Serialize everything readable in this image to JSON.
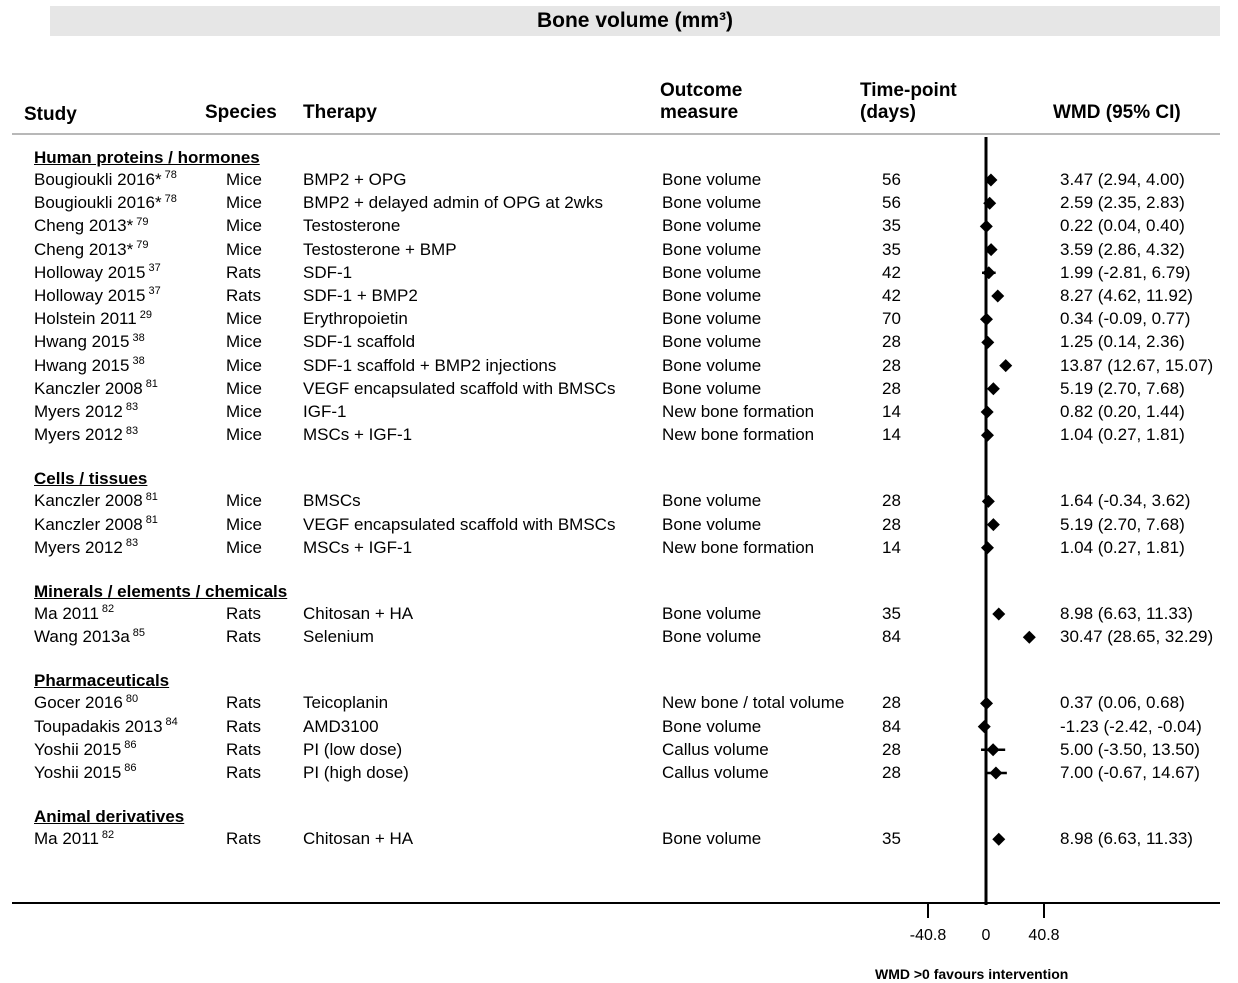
{
  "title": "Bone volume (mm³)",
  "headers": {
    "study": "Study",
    "species": "Species",
    "therapy": "Therapy",
    "outcome_line1": "Outcome",
    "outcome_line2": "measure",
    "time_line1": "Time-point",
    "time_line2": "(days)",
    "wmd": "WMD (95% CI)"
  },
  "axis_note": "WMD >0 favours intervention",
  "chart_data": {
    "type": "scatter",
    "title": "Bone volume (mm³)",
    "xlabel": "WMD >0 favours intervention",
    "x_ticks": [
      "-40.8",
      "0",
      "40.8"
    ],
    "x_tick_values": [
      -40.8,
      0,
      40.8
    ],
    "xlim": [
      -55,
      170
    ],
    "groups": [
      {
        "name": "Human proteins / hormones",
        "rows": [
          {
            "study": "Bougioukli 2016*",
            "ref": "78",
            "species": "Mice",
            "therapy": "BMP2 + OPG",
            "outcome": "Bone volume",
            "time": "56",
            "wmd": 3.47,
            "lo": 2.94,
            "hi": 4.0,
            "label": "3.47 (2.94, 4.00)"
          },
          {
            "study": "Bougioukli 2016*",
            "ref": "78",
            "species": "Mice",
            "therapy": "BMP2 + delayed admin of OPG at 2wks",
            "outcome": "Bone volume",
            "time": "56",
            "wmd": 2.59,
            "lo": 2.35,
            "hi": 2.83,
            "label": "2.59 (2.35, 2.83)"
          },
          {
            "study": "Cheng 2013*",
            "ref": "79",
            "species": "Mice",
            "therapy": "Testosterone",
            "outcome": "Bone volume",
            "time": "35",
            "wmd": 0.22,
            "lo": 0.04,
            "hi": 0.4,
            "label": "0.22 (0.04, 0.40)"
          },
          {
            "study": "Cheng 2013*",
            "ref": "79",
            "species": "Mice",
            "therapy": "Testosterone + BMP",
            "outcome": "Bone volume",
            "time": "35",
            "wmd": 3.59,
            "lo": 2.86,
            "hi": 4.32,
            "label": "3.59 (2.86, 4.32)"
          },
          {
            "study": "Holloway 2015",
            "ref": "37",
            "species": "Rats",
            "therapy": "SDF-1",
            "outcome": "Bone volume",
            "time": "42",
            "wmd": 1.99,
            "lo": -2.81,
            "hi": 6.79,
            "label": "1.99 (-2.81, 6.79)"
          },
          {
            "study": "Holloway 2015",
            "ref": "37",
            "species": "Rats",
            "therapy": "SDF-1 + BMP2",
            "outcome": "Bone volume",
            "time": "42",
            "wmd": 8.27,
            "lo": 4.62,
            "hi": 11.92,
            "label": "8.27 (4.62, 11.92)"
          },
          {
            "study": "Holstein 2011",
            "ref": "29",
            "species": "Mice",
            "therapy": "Erythropoietin",
            "outcome": "Bone volume",
            "time": "70",
            "wmd": 0.34,
            "lo": -0.09,
            "hi": 0.77,
            "label": "0.34 (-0.09, 0.77)"
          },
          {
            "study": "Hwang 2015",
            "ref": "38",
            "species": "Mice",
            "therapy": "SDF-1 scaffold",
            "outcome": "Bone volume",
            "time": "28",
            "wmd": 1.25,
            "lo": 0.14,
            "hi": 2.36,
            "label": "1.25 (0.14, 2.36)"
          },
          {
            "study": "Hwang 2015",
            "ref": "38",
            "species": "Mice",
            "therapy": "SDF-1 scaffold + BMP2 injections",
            "outcome": "Bone volume",
            "time": "28",
            "wmd": 13.87,
            "lo": 12.67,
            "hi": 15.07,
            "label": "13.87 (12.67, 15.07)"
          },
          {
            "study": "Kanczler 2008",
            "ref": "81",
            "species": "Mice",
            "therapy": "VEGF encapsulated scaffold with BMSCs",
            "outcome": "Bone volume",
            "time": "28",
            "wmd": 5.19,
            "lo": 2.7,
            "hi": 7.68,
            "label": "5.19 (2.70, 7.68)"
          },
          {
            "study": "Myers 2012",
            "ref": "83",
            "species": "Mice",
            "therapy": "IGF-1",
            "outcome": "New bone formation",
            "time": "14",
            "wmd": 0.82,
            "lo": 0.2,
            "hi": 1.44,
            "label": "0.82 (0.20, 1.44)"
          },
          {
            "study": "Myers 2012",
            "ref": "83",
            "species": "Mice",
            "therapy": "MSCs + IGF-1",
            "outcome": "New bone formation",
            "time": "14",
            "wmd": 1.04,
            "lo": 0.27,
            "hi": 1.81,
            "label": "1.04 (0.27, 1.81)"
          }
        ]
      },
      {
        "name": "Cells / tissues",
        "rows": [
          {
            "study": "Kanczler 2008",
            "ref": "81",
            "species": "Mice",
            "therapy": "BMSCs",
            "outcome": "Bone volume",
            "time": "28",
            "wmd": 1.64,
            "lo": -0.34,
            "hi": 3.62,
            "label": "1.64 (-0.34, 3.62)"
          },
          {
            "study": "Kanczler 2008",
            "ref": "81",
            "species": "Mice",
            "therapy": "VEGF encapsulated scaffold with BMSCs",
            "outcome": "Bone volume",
            "time": "28",
            "wmd": 5.19,
            "lo": 2.7,
            "hi": 7.68,
            "label": "5.19 (2.70, 7.68)"
          },
          {
            "study": "Myers 2012",
            "ref": "83",
            "species": "Mice",
            "therapy": "MSCs + IGF-1",
            "outcome": "New bone formation",
            "time": "14",
            "wmd": 1.04,
            "lo": 0.27,
            "hi": 1.81,
            "label": "1.04 (0.27, 1.81)"
          }
        ]
      },
      {
        "name": "Minerals / elements / chemicals",
        "rows": [
          {
            "study": "Ma 2011",
            "ref": "82",
            "species": "Rats",
            "therapy": "Chitosan + HA",
            "outcome": "Bone volume",
            "time": "35",
            "wmd": 8.98,
            "lo": 6.63,
            "hi": 11.33,
            "label": "8.98 (6.63, 11.33)"
          },
          {
            "study": "Wang 2013a",
            "ref": "85",
            "species": "Rats",
            "therapy": "Selenium",
            "outcome": "Bone volume",
            "time": "84",
            "wmd": 30.47,
            "lo": 28.65,
            "hi": 32.29,
            "label": "30.47 (28.65, 32.29)"
          }
        ]
      },
      {
        "name": "Pharmaceuticals",
        "rows": [
          {
            "study": "Gocer 2016",
            "ref": "80",
            "species": "Rats",
            "therapy": "Teicoplanin",
            "outcome": "New bone / total volume",
            "time": "28",
            "wmd": 0.37,
            "lo": 0.06,
            "hi": 0.68,
            "label": "0.37 (0.06, 0.68)"
          },
          {
            "study": "Toupadakis 2013",
            "ref": "84",
            "species": "Rats",
            "therapy": "AMD3100",
            "outcome": "Bone volume",
            "time": "84",
            "wmd": -1.23,
            "lo": -2.42,
            "hi": -0.04,
            "label": "-1.23 (-2.42, -0.04)"
          },
          {
            "study": "Yoshii 2015",
            "ref": "86",
            "species": "Rats",
            "therapy": "PI (low dose)",
            "outcome": "Callus volume",
            "time": "28",
            "wmd": 5.0,
            "lo": -3.5,
            "hi": 13.5,
            "label": "5.00 (-3.50, 13.50)"
          },
          {
            "study": "Yoshii 2015",
            "ref": "86",
            "species": "Rats",
            "therapy": "PI (high dose)",
            "outcome": "Callus volume",
            "time": "28",
            "wmd": 7.0,
            "lo": -0.67,
            "hi": 14.67,
            "label": "7.00 (-0.67, 14.67)"
          }
        ]
      },
      {
        "name": "Animal derivatives",
        "rows": [
          {
            "study": "Ma 2011",
            "ref": "82",
            "species": "Rats",
            "therapy": "Chitosan + HA",
            "outcome": "Bone volume",
            "time": "35",
            "wmd": 8.98,
            "lo": 6.63,
            "hi": 11.33,
            "label": "8.98 (6.63, 11.33)"
          }
        ]
      }
    ]
  }
}
